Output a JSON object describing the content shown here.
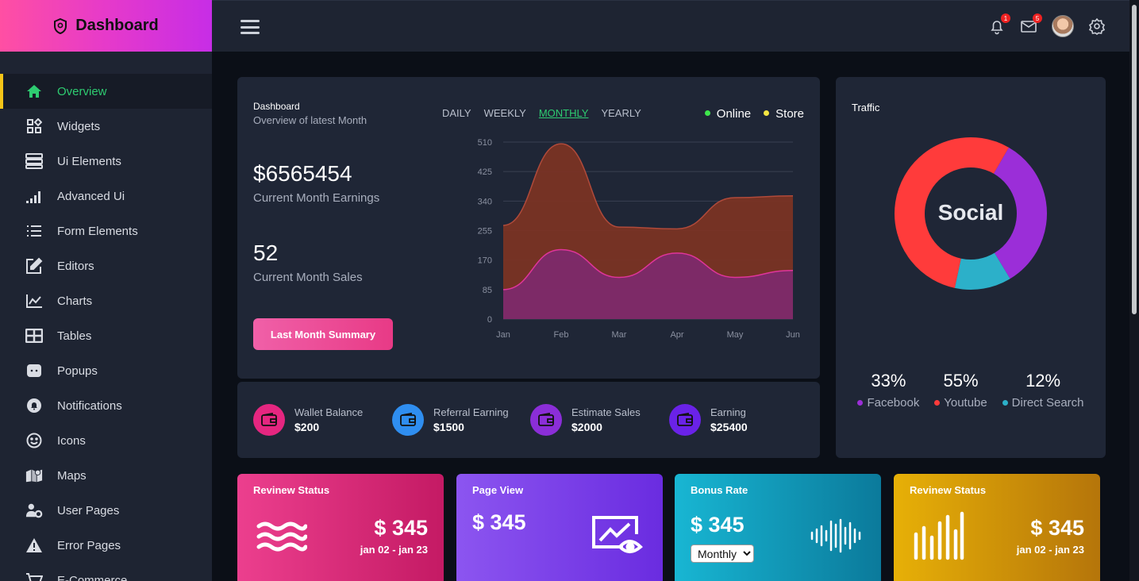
{
  "brand": {
    "title": "Dashboard"
  },
  "sidebar": {
    "items": [
      {
        "label": "Overview",
        "icon": "home-icon"
      },
      {
        "label": "Widgets",
        "icon": "widgets-icon"
      },
      {
        "label": "Ui Elements",
        "icon": "server-icon"
      },
      {
        "label": "Advanced Ui",
        "icon": "signal-bars-icon"
      },
      {
        "label": "Form Elements",
        "icon": "list-icon"
      },
      {
        "label": "Editors",
        "icon": "edit-icon"
      },
      {
        "label": "Charts",
        "icon": "line-chart-icon"
      },
      {
        "label": "Tables",
        "icon": "table-icon"
      },
      {
        "label": "Popups",
        "icon": "popup-icon"
      },
      {
        "label": "Notifications",
        "icon": "bell-icon"
      },
      {
        "label": "Icons",
        "icon": "smiley-icon"
      },
      {
        "label": "Maps",
        "icon": "map-icon"
      },
      {
        "label": "User Pages",
        "icon": "user-gear-icon"
      },
      {
        "label": "Error Pages",
        "icon": "warning-icon"
      },
      {
        "label": "E-Commerce",
        "icon": "cart-icon"
      }
    ]
  },
  "header": {
    "notifications_count": "1",
    "messages_count": "5"
  },
  "dashboard": {
    "title": "Dashboard",
    "subtitle": "Overview of latest Month",
    "periods": [
      "DAILY",
      "WEEKLY",
      "MONTHLY",
      "YEARLY"
    ],
    "active_period": "MONTHLY",
    "legend": [
      {
        "name": "Online",
        "color": "#3ee64c"
      },
      {
        "name": "Store",
        "color": "#f5e642"
      }
    ],
    "earnings_value": "$6565454",
    "earnings_label": "Current Month Earnings",
    "sales_value": "52",
    "sales_label": "Current Month Sales",
    "summary_button": "Last Month Summary"
  },
  "chart_data": {
    "type": "area",
    "x": [
      "Jan",
      "Feb",
      "Mar",
      "Apr",
      "May",
      "Jun"
    ],
    "yticks": [
      0,
      85,
      170,
      255,
      340,
      425,
      510
    ],
    "ylim": [
      0,
      510
    ],
    "series": [
      {
        "values": [
          270,
          505,
          265,
          260,
          350,
          355
        ],
        "color": "#7a3324"
      },
      {
        "values": [
          85,
          200,
          120,
          190,
          120,
          140
        ],
        "color": "#7d2a6c"
      }
    ]
  },
  "traffic": {
    "title": "Traffic",
    "center_label": "Social",
    "donut": [
      {
        "value": 33,
        "color": "#9b2ed8"
      },
      {
        "value": 12,
        "color": "#2cb0c9"
      },
      {
        "value": 55,
        "color": "#ff3b3b"
      }
    ],
    "stats": [
      {
        "pct": "33%",
        "label": "Facebook",
        "color": "#9b2ed8"
      },
      {
        "pct": "55%",
        "label": "Youtube",
        "color": "#ff3b3b"
      },
      {
        "pct": "12%",
        "label": "Direct Search",
        "color": "#2cb0c9"
      }
    ]
  },
  "wallets": [
    {
      "label": "Wallet Balance",
      "value": "$200",
      "color": "#e52680"
    },
    {
      "label": "Referral Earning",
      "value": "$1500",
      "color": "#2f8ef0"
    },
    {
      "label": "Estimate Sales",
      "value": "$2000",
      "color": "#8b2ed8"
    },
    {
      "label": "Earning",
      "value": "$25400",
      "color": "#6a22e8"
    }
  ],
  "stat_cards": [
    {
      "title": "Revinew Status",
      "value": "$ 345",
      "date": "jan 02 - jan 23"
    },
    {
      "title": "Page View",
      "value": "$ 345"
    },
    {
      "title": "Bonus Rate",
      "value": "$ 345",
      "select": "Monthly"
    },
    {
      "title": "Revinew Status",
      "value": "$ 345",
      "date": "jan 02 - jan 23"
    }
  ]
}
